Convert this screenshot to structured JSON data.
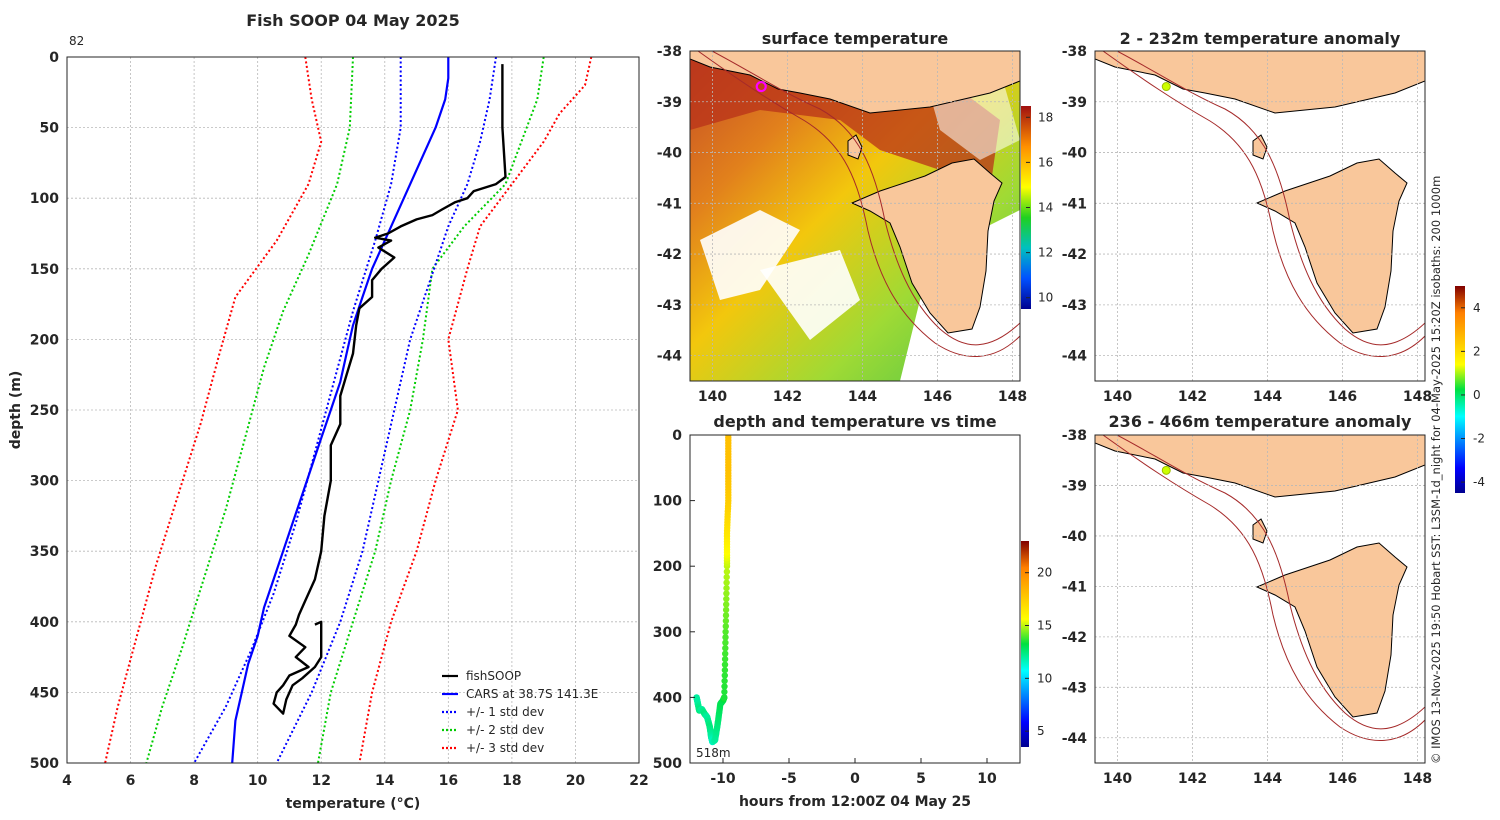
{
  "chart_data": [
    {
      "type": "line",
      "title": "Fish SOOP 04 May 2025",
      "corner_label": "82",
      "xlabel": "temperature (°C)",
      "ylabel": "depth (m)",
      "xlim": [
        4,
        22
      ],
      "ylim": [
        500,
        0
      ],
      "xticks": [
        4,
        6,
        8,
        10,
        12,
        14,
        16,
        18,
        20,
        22
      ],
      "yticks": [
        0,
        50,
        100,
        150,
        200,
        250,
        300,
        350,
        400,
        450,
        500
      ],
      "legend": "bottom-right",
      "series": [
        {
          "name": "fishSOOP",
          "color": "#000000",
          "style": "solid",
          "points": [
            [
              17.7,
              5
            ],
            [
              17.7,
              50
            ],
            [
              17.8,
              85
            ],
            [
              17.5,
              90
            ],
            [
              16.8,
              95
            ],
            [
              16.6,
              100
            ],
            [
              16.2,
              103
            ],
            [
              15.8,
              108
            ],
            [
              15.5,
              112
            ],
            [
              15.0,
              115
            ],
            [
              14.5,
              120
            ],
            [
              14.1,
              125
            ],
            [
              13.7,
              128
            ],
            [
              14.2,
              130
            ],
            [
              13.8,
              135
            ],
            [
              14.3,
              142
            ],
            [
              13.9,
              150
            ],
            [
              13.6,
              158
            ],
            [
              13.6,
              170
            ],
            [
              13.2,
              178
            ],
            [
              13.1,
              190
            ],
            [
              13.0,
              210
            ],
            [
              12.8,
              225
            ],
            [
              12.6,
              240
            ],
            [
              12.6,
              260
            ],
            [
              12.3,
              275
            ],
            [
              12.3,
              300
            ],
            [
              12.1,
              325
            ],
            [
              12.0,
              350
            ],
            [
              11.8,
              370
            ],
            [
              11.5,
              385
            ],
            [
              11.3,
              395
            ],
            [
              11.2,
              402
            ],
            [
              11.0,
              410
            ],
            [
              11.5,
              418
            ],
            [
              11.2,
              425
            ],
            [
              11.6,
              432
            ],
            [
              11.0,
              438
            ],
            [
              10.8,
              445
            ],
            [
              10.6,
              450
            ],
            [
              10.5,
              458
            ],
            [
              10.8,
              465
            ],
            [
              10.9,
              455
            ],
            [
              11.1,
              445
            ],
            [
              11.4,
              440
            ],
            [
              11.8,
              432
            ],
            [
              12.0,
              425
            ],
            [
              12.0,
              400
            ],
            [
              11.8,
              402
            ]
          ]
        },
        {
          "name": "CARS at 38.7S 141.3E",
          "color": "#0000ff",
          "style": "solid",
          "points": [
            [
              16.0,
              0
            ],
            [
              16.0,
              15
            ],
            [
              15.9,
              30
            ],
            [
              15.6,
              50
            ],
            [
              15.2,
              70
            ],
            [
              14.8,
              90
            ],
            [
              14.4,
              110
            ],
            [
              14.0,
              130
            ],
            [
              13.6,
              150
            ],
            [
              13.3,
              170
            ],
            [
              13.0,
              190
            ],
            [
              12.8,
              210
            ],
            [
              12.6,
              230
            ],
            [
              12.3,
              250
            ],
            [
              12.0,
              270
            ],
            [
              11.7,
              290
            ],
            [
              11.4,
              310
            ],
            [
              11.1,
              330
            ],
            [
              10.8,
              350
            ],
            [
              10.5,
              370
            ],
            [
              10.2,
              390
            ],
            [
              10.0,
              410
            ],
            [
              9.7,
              430
            ],
            [
              9.5,
              450
            ],
            [
              9.3,
              470
            ],
            [
              9.2,
              500
            ]
          ]
        },
        {
          "name": "+/- 1 std dev",
          "color": "#0000ff",
          "style": "dotted",
          "points": [
            [
              14.5,
              0
            ],
            [
              14.5,
              50
            ],
            [
              14.2,
              90
            ],
            [
              13.7,
              130
            ],
            [
              13.0,
              180
            ],
            [
              12.4,
              230
            ],
            [
              11.8,
              280
            ],
            [
              11.2,
              330
            ],
            [
              10.5,
              380
            ],
            [
              9.8,
              420
            ],
            [
              9.0,
              460
            ],
            [
              8.0,
              500
            ]
          ],
          "points_upper": [
            [
              17.5,
              0
            ],
            [
              17.3,
              30
            ],
            [
              17.0,
              60
            ],
            [
              16.6,
              90
            ],
            [
              16.0,
              120
            ],
            [
              15.4,
              160
            ],
            [
              14.8,
              200
            ],
            [
              14.3,
              250
            ],
            [
              13.8,
              300
            ],
            [
              13.3,
              350
            ],
            [
              12.6,
              400
            ],
            [
              11.7,
              450
            ],
            [
              10.6,
              500
            ]
          ]
        },
        {
          "name": "+/- 2 std dev",
          "color": "#00cc00",
          "style": "dotted",
          "points": [
            [
              13.0,
              0
            ],
            [
              12.9,
              50
            ],
            [
              12.5,
              90
            ],
            [
              11.6,
              140
            ],
            [
              10.8,
              180
            ],
            [
              10.2,
              220
            ],
            [
              9.6,
              270
            ],
            [
              9.0,
              320
            ],
            [
              8.3,
              370
            ],
            [
              7.6,
              420
            ],
            [
              7.0,
              460
            ],
            [
              6.5,
              500
            ]
          ],
          "points_upper": [
            [
              19.0,
              0
            ],
            [
              18.8,
              30
            ],
            [
              18.3,
              60
            ],
            [
              17.8,
              90
            ],
            [
              16.5,
              120
            ],
            [
              15.5,
              150
            ],
            [
              15.2,
              200
            ],
            [
              14.8,
              250
            ],
            [
              14.2,
              300
            ],
            [
              13.7,
              350
            ],
            [
              13.0,
              400
            ],
            [
              12.3,
              450
            ],
            [
              11.9,
              500
            ]
          ]
        },
        {
          "name": "+/- 3 std dev",
          "color": "#ff0000",
          "style": "dotted",
          "points": [
            [
              11.5,
              0
            ],
            [
              11.7,
              30
            ],
            [
              12.0,
              60
            ],
            [
              11.6,
              90
            ],
            [
              10.6,
              130
            ],
            [
              9.3,
              170
            ],
            [
              8.8,
              210
            ],
            [
              8.2,
              260
            ],
            [
              7.5,
              310
            ],
            [
              6.8,
              360
            ],
            [
              6.2,
              410
            ],
            [
              5.6,
              460
            ],
            [
              5.2,
              500
            ]
          ],
          "points_upper": [
            [
              20.5,
              0
            ],
            [
              20.3,
              20
            ],
            [
              19.5,
              40
            ],
            [
              19.0,
              60
            ],
            [
              18.0,
              90
            ],
            [
              17.0,
              120
            ],
            [
              16.6,
              150
            ],
            [
              16.0,
              200
            ],
            [
              16.3,
              250
            ],
            [
              15.6,
              300
            ],
            [
              15.0,
              350
            ],
            [
              14.2,
              400
            ],
            [
              13.6,
              450
            ],
            [
              13.2,
              500
            ]
          ]
        }
      ]
    },
    {
      "type": "heatmap",
      "title": "surface temperature",
      "xlim": [
        139.4,
        148.2
      ],
      "ylim": [
        -44.5,
        -38
      ],
      "xticks": [
        140,
        142,
        144,
        146,
        148
      ],
      "yticks": [
        -38,
        -39,
        -40,
        -41,
        -42,
        -43,
        -44
      ],
      "colorbar": {
        "min": 9.5,
        "max": 18.5,
        "ticks": [
          10,
          12,
          14,
          16,
          18
        ]
      },
      "marker": {
        "lon": 141.3,
        "lat": -38.7,
        "color": "#ff00ff"
      }
    },
    {
      "type": "scatter",
      "title": "depth and temperature vs time",
      "xlabel": "hours from 12:00Z 04 May 25",
      "xlim": [
        -12.5,
        12.5
      ],
      "ylim": [
        500,
        0
      ],
      "xticks": [
        -10,
        -5,
        0,
        5,
        10
      ],
      "yticks": [
        0,
        100,
        200,
        300,
        400,
        500
      ],
      "annotation": "518m",
      "colorbar": {
        "min": 3.5,
        "max": 23,
        "ticks": [
          5,
          10,
          15,
          20
        ]
      },
      "points": [
        [
          -12.0,
          400,
          12
        ],
        [
          -11.9,
          410,
          12
        ],
        [
          -11.8,
          420,
          12.5
        ],
        [
          -11.6,
          418,
          12
        ],
        [
          -11.4,
          425,
          12.5
        ],
        [
          -11.2,
          430,
          12
        ],
        [
          -11.0,
          445,
          12.5
        ],
        [
          -10.9,
          460,
          12
        ],
        [
          -10.8,
          468,
          11.5
        ],
        [
          -10.6,
          465,
          12
        ],
        [
          -10.4,
          440,
          12.5
        ],
        [
          -10.2,
          410,
          13
        ],
        [
          -10.0,
          405,
          13
        ],
        [
          -9.9,
          400,
          13.5
        ],
        [
          -9.8,
          300,
          14
        ],
        [
          -9.7,
          200,
          15
        ],
        [
          -9.7,
          150,
          16.5
        ],
        [
          -9.6,
          100,
          17.5
        ],
        [
          -9.6,
          50,
          18
        ],
        [
          -9.6,
          0,
          18
        ]
      ]
    },
    {
      "type": "heatmap",
      "title": "2 - 232m temperature anomaly",
      "xlim": [
        139.4,
        148.2
      ],
      "ylim": [
        -44.5,
        -38
      ],
      "xticks": [
        140,
        142,
        144,
        146,
        148
      ],
      "yticks": [
        -38,
        -39,
        -40,
        -41,
        -42,
        -43,
        -44
      ],
      "marker": {
        "lon": 141.3,
        "lat": -38.7,
        "color": "#ccff00"
      }
    },
    {
      "type": "heatmap",
      "title": "236 - 466m temperature anomaly",
      "xlim": [
        139.4,
        148.2
      ],
      "ylim": [
        -44.5,
        -38
      ],
      "xticks": [
        140,
        142,
        144,
        146,
        148
      ],
      "yticks": [
        -38,
        -39,
        -40,
        -41,
        -42,
        -43,
        -44
      ],
      "marker": {
        "lon": 141.3,
        "lat": -38.7,
        "color": "#ccff00"
      }
    }
  ],
  "anomaly_colorbar": {
    "min": -4.5,
    "max": 5,
    "ticks": [
      -4,
      -2,
      0,
      2,
      4
    ]
  },
  "credit": "© IMOS 13-Nov-2025 19:50 Hobart SST: L3SM-1d_night for 04-May-2025 15:20Z isobaths: 200  1000m"
}
